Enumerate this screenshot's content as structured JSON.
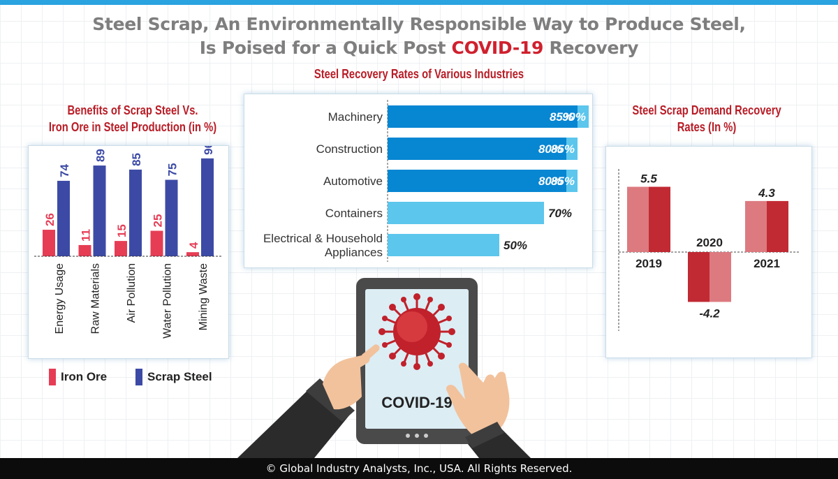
{
  "header": {
    "title_line1": "Steel Scrap, An Environmentally Responsible Way to Produce Steel,",
    "title_line2_pre": "Is Poised for a Quick Post",
    "title_line2_highlight": "COVID-19",
    "title_line2_post": "Recovery"
  },
  "colors": {
    "iron_ore": "#e63d55",
    "scrap_steel": "#3c4aa6",
    "bar_dark": "#0786d2",
    "bar_light": "#5cc6ec",
    "demand_light": "#dc7a80",
    "demand_dark": "#c12a33",
    "title_red": "#d0202e"
  },
  "chart_data": [
    {
      "type": "bar",
      "title": "Benefits of Scrap Steel Vs. Iron Ore in Steel Production (in %)",
      "title_lines": [
        "Benefits of Scrap Steel Vs.",
        "Iron Ore in Steel Production (in %)"
      ],
      "categories": [
        "Energy Usage",
        "Raw Materials",
        "Air Pollution",
        "Water Pollution",
        "Mining Waste"
      ],
      "series": [
        {
          "name": "Iron Ore",
          "values": [
            26,
            11,
            15,
            25,
            4
          ]
        },
        {
          "name": "Scrap Steel",
          "values": [
            74,
            89,
            85,
            75,
            96
          ]
        }
      ],
      "ylim": [
        0,
        100
      ],
      "legend": "bottom"
    },
    {
      "type": "bar",
      "orientation": "horizontal",
      "title": "Steel Recovery Rates of Various Industries",
      "categories": [
        "Machinery",
        "Construction",
        "Automotive",
        "Containers",
        "Electrical & Household Appliances"
      ],
      "category_lines": [
        [
          "Machinery"
        ],
        [
          "Construction"
        ],
        [
          "Automotive"
        ],
        [
          "Containers"
        ],
        [
          "Electrical & Household",
          "Appliances"
        ]
      ],
      "series": [
        {
          "values": [
            85,
            80,
            80,
            70,
            50
          ]
        },
        {
          "values": [
            90,
            85,
            85,
            null,
            null
          ]
        }
      ],
      "value_labels": [
        [
          "85%",
          "90%"
        ],
        [
          "80%",
          "85%"
        ],
        [
          "80%",
          "85%"
        ],
        [
          "70%"
        ],
        [
          "50%"
        ]
      ],
      "xlim": [
        0,
        100
      ]
    },
    {
      "type": "bar",
      "title": "Steel Scrap Demand Recovery Rates (In %)",
      "title_lines": [
        "Steel Scrap Demand Recovery",
        "Rates (In %)"
      ],
      "categories": [
        "2019",
        "2020",
        "2021"
      ],
      "values": [
        5.5,
        -4.2,
        4.3
      ],
      "value_labels": [
        "5.5",
        "-4.2",
        "4.3"
      ],
      "ylim": [
        -6,
        6.5
      ]
    }
  ],
  "tablet": {
    "label": "COVID-19"
  },
  "legend": {
    "iron_ore": "Iron Ore",
    "scrap_steel": "Scrap Steel"
  },
  "footer": {
    "text": "© Global Industry Analysts, Inc., USA. All Rights Reserved."
  }
}
